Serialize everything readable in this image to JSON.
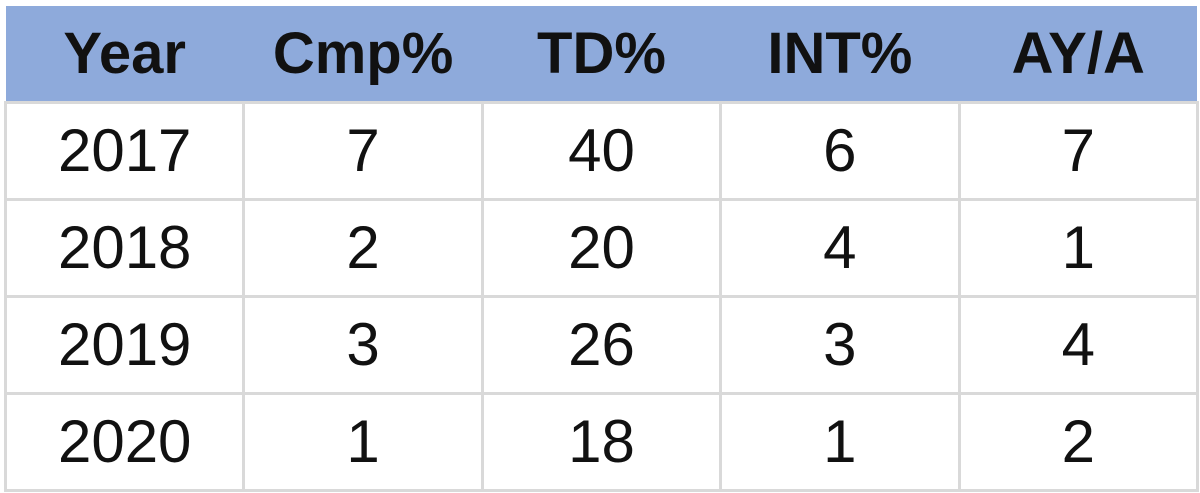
{
  "table": {
    "columns": [
      "Year",
      "Cmp%",
      "TD%",
      "INT%",
      "AY/A"
    ],
    "rows": [
      [
        "2017",
        "7",
        "40",
        "6",
        "7"
      ],
      [
        "2018",
        "2",
        "20",
        "4",
        "1"
      ],
      [
        "2019",
        "3",
        "26",
        "3",
        "4"
      ],
      [
        "2020",
        "1",
        "18",
        "1",
        "2"
      ]
    ]
  },
  "colors": {
    "header_background": "#8eaadb",
    "gridline": "#d9d9d9",
    "text": "#111111"
  }
}
